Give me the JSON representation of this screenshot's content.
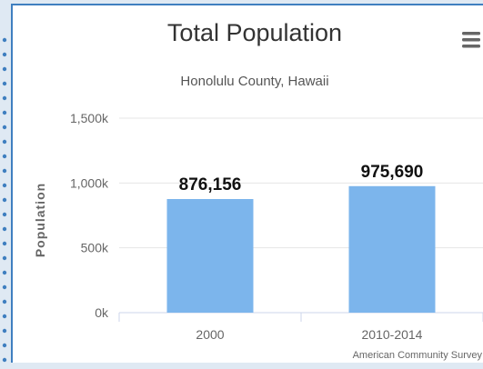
{
  "colors": {
    "bar": "#7cb5ec",
    "frame_border": "#3f7fc0",
    "grid": "#e6e6e6",
    "axis_text": "#666666",
    "dots": "#3f7fc0"
  },
  "menu": {
    "icon": "hamburger-menu-icon"
  },
  "chart_data": {
    "type": "bar",
    "title": "Total Population",
    "subtitle": "Honolulu County, Hawaii",
    "categories": [
      "2000",
      "2010-2014"
    ],
    "values": [
      876156,
      975690
    ],
    "data_labels": [
      "876,156",
      "975,690"
    ],
    "ylabel": "Population",
    "xlabel": "",
    "ylim": [
      0,
      1500000
    ],
    "yticks": [
      0,
      500000,
      1000000,
      1500000
    ],
    "ytick_labels": [
      "0k",
      "500k",
      "1,000k",
      "1,500k"
    ],
    "grid": true,
    "legend": "none",
    "credit": "American Community Survey"
  }
}
